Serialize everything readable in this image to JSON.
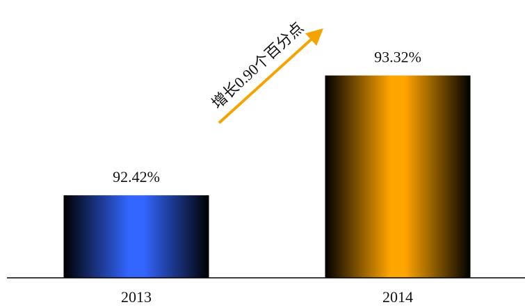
{
  "chart_data": {
    "type": "bar",
    "categories": [
      "2013",
      "2014"
    ],
    "values": [
      92.42,
      93.32
    ],
    "value_labels": [
      "92.42%",
      "93.32%"
    ],
    "colors": [
      "#3366ff",
      "#ffa500"
    ],
    "ylim": [
      91.8,
      93.6
    ],
    "annotation": "增长0.90个百分点"
  }
}
